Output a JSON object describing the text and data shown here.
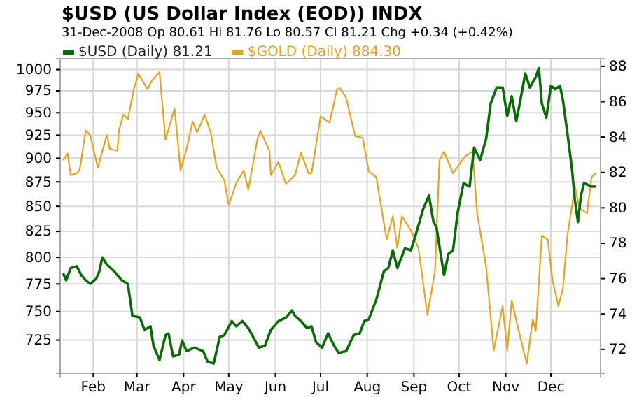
{
  "chart_data": {
    "type": "line",
    "title": "$USD (US Dollar Index (EOD)) INDX",
    "subtitle": "31-Dec-2008  Op 80.61  Hi 81.76  Lo 80.57  Cl 81.21  Chg +0.34 (+0.42%)",
    "log": "y",
    "grid": true,
    "legend": "top",
    "xlim": [
      "2008-01-10",
      "2009-01-03"
    ],
    "xticks": [
      {
        "value": "2008-02-01",
        "label": "Feb"
      },
      {
        "value": "2008-03-01",
        "label": "Mar"
      },
      {
        "value": "2008-04-01",
        "label": "Apr"
      },
      {
        "value": "2008-05-01",
        "label": "May"
      },
      {
        "value": "2008-06-01",
        "label": "Jun"
      },
      {
        "value": "2008-07-01",
        "label": "Jul"
      },
      {
        "value": "2008-08-01",
        "label": "Aug"
      },
      {
        "value": "2008-09-01",
        "label": "Sep"
      },
      {
        "value": "2008-10-01",
        "label": "Oct"
      },
      {
        "value": "2008-11-01",
        "label": "Nov"
      },
      {
        "value": "2008-12-01",
        "label": "Dec"
      }
    ],
    "ylim": [
      697,
      1013
    ],
    "yticks": [
      725,
      750,
      775,
      800,
      825,
      850,
      875,
      900,
      925,
      950,
      975,
      1000
    ],
    "y2lim": [
      70.65,
      88.43
    ],
    "y2ticks": [
      72,
      74,
      76,
      78,
      80,
      82,
      84,
      86,
      88
    ],
    "series": [
      {
        "name": "$USD (Daily) 81.21",
        "color": "#0b6b0b",
        "axis": "y2",
        "x": [
          "2008-01-12",
          "2008-01-14",
          "2008-01-17",
          "2008-01-21",
          "2008-01-24",
          "2008-01-27",
          "2008-01-30",
          "2008-02-03",
          "2008-02-05",
          "2008-02-07",
          "2008-02-10",
          "2008-02-15",
          "2008-02-20",
          "2008-02-24",
          "2008-02-27",
          "2008-03-03",
          "2008-03-06",
          "2008-03-10",
          "2008-03-12",
          "2008-03-16",
          "2008-03-20",
          "2008-03-22",
          "2008-03-25",
          "2008-03-29",
          "2008-03-31",
          "2008-04-03",
          "2008-04-08",
          "2008-04-14",
          "2008-04-17",
          "2008-04-21",
          "2008-04-25",
          "2008-04-28",
          "2008-05-03",
          "2008-05-06",
          "2008-05-10",
          "2008-05-14",
          "2008-05-21",
          "2008-05-25",
          "2008-05-29",
          "2008-06-03",
          "2008-06-08",
          "2008-06-12",
          "2008-06-14",
          "2008-06-18",
          "2008-06-22",
          "2008-06-25",
          "2008-06-28",
          "2008-07-02",
          "2008-07-06",
          "2008-07-10",
          "2008-07-13",
          "2008-07-18",
          "2008-07-23",
          "2008-07-27",
          "2008-07-30",
          "2008-08-02",
          "2008-08-07",
          "2008-08-12",
          "2008-08-15",
          "2008-08-18",
          "2008-08-21",
          "2008-08-26",
          "2008-08-30",
          "2008-09-03",
          "2008-09-07",
          "2008-09-11",
          "2008-09-14",
          "2008-09-16",
          "2008-09-21",
          "2008-09-24",
          "2008-09-27",
          "2008-09-30",
          "2008-10-04",
          "2008-10-08",
          "2008-10-11",
          "2008-10-15",
          "2008-10-19",
          "2008-10-22",
          "2008-10-26",
          "2008-10-30",
          "2008-11-02",
          "2008-11-05",
          "2008-11-08",
          "2008-11-11",
          "2008-11-14",
          "2008-11-17",
          "2008-11-21",
          "2008-11-23",
          "2008-11-25",
          "2008-11-28",
          "2008-12-01",
          "2008-12-04",
          "2008-12-07",
          "2008-12-09",
          "2008-12-12",
          "2008-12-15",
          "2008-12-17",
          "2008-12-19",
          "2008-12-21",
          "2008-12-23",
          "2008-12-28",
          "2008-12-31"
        ],
        "values": [
          76.3,
          75.9,
          76.6,
          76.7,
          76.2,
          75.9,
          75.7,
          76.0,
          76.4,
          77.2,
          76.8,
          76.4,
          75.9,
          75.7,
          73.9,
          73.8,
          73.1,
          73.3,
          72.2,
          71.4,
          72.8,
          72.9,
          71.6,
          71.7,
          72.5,
          71.9,
          72.1,
          71.9,
          71.3,
          71.2,
          72.7,
          72.8,
          73.6,
          73.3,
          73.6,
          73.2,
          72.1,
          72.2,
          73.1,
          73.6,
          73.8,
          74.2,
          73.9,
          73.6,
          73.2,
          73.3,
          72.4,
          72.1,
          72.9,
          72.2,
          71.8,
          71.9,
          72.8,
          72.9,
          73.6,
          73.7,
          74.8,
          76.4,
          76.6,
          77.6,
          76.6,
          77.7,
          77.6,
          78.7,
          79.9,
          80.7,
          79.2,
          78.9,
          76.2,
          77.4,
          77.6,
          79.7,
          81.4,
          81.2,
          83.4,
          82.7,
          83.9,
          85.9,
          86.8,
          86.8,
          85.2,
          86.3,
          84.9,
          86.2,
          87.6,
          86.8,
          87.4,
          87.9,
          85.9,
          85.1,
          86.9,
          86.7,
          86.9,
          86.1,
          84.2,
          82.2,
          80.4,
          79.2,
          80.7,
          81.4,
          81.2,
          81.21
        ]
      },
      {
        "name": "$GOLD (Daily) 884.30",
        "color": "#e3a325",
        "axis": "y",
        "x": [
          "2008-01-12",
          "2008-01-15",
          "2008-01-17",
          "2008-01-21",
          "2008-01-23",
          "2008-01-27",
          "2008-01-30",
          "2008-02-04",
          "2008-02-10",
          "2008-02-12",
          "2008-02-17",
          "2008-02-18",
          "2008-02-21",
          "2008-02-24",
          "2008-02-28",
          "2008-03-02",
          "2008-03-08",
          "2008-03-11",
          "2008-03-16",
          "2008-03-20",
          "2008-03-26",
          "2008-03-30",
          "2008-04-03",
          "2008-04-07",
          "2008-04-10",
          "2008-04-15",
          "2008-04-19",
          "2008-04-23",
          "2008-04-28",
          "2008-05-01",
          "2008-05-06",
          "2008-05-11",
          "2008-05-14",
          "2008-05-20",
          "2008-05-22",
          "2008-05-28",
          "2008-05-29",
          "2008-06-03",
          "2008-06-08",
          "2008-06-14",
          "2008-06-18",
          "2008-06-23",
          "2008-06-25",
          "2008-07-01",
          "2008-07-07",
          "2008-07-12",
          "2008-07-14",
          "2008-07-18",
          "2008-07-24",
          "2008-07-29",
          "2008-08-02",
          "2008-08-07",
          "2008-08-12",
          "2008-08-14",
          "2008-08-18",
          "2008-08-21",
          "2008-08-24",
          "2008-08-30",
          "2008-09-04",
          "2008-09-10",
          "2008-09-15",
          "2008-09-18",
          "2008-09-21",
          "2008-09-27",
          "2008-10-05",
          "2008-10-10",
          "2008-10-13",
          "2008-10-19",
          "2008-10-24",
          "2008-10-30",
          "2008-11-02",
          "2008-11-05",
          "2008-11-10",
          "2008-11-15",
          "2008-11-19",
          "2008-11-21",
          "2008-11-25",
          "2008-11-29",
          "2008-12-02",
          "2008-12-06",
          "2008-12-09",
          "2008-12-12",
          "2008-12-17",
          "2008-12-20",
          "2008-12-25",
          "2008-12-28",
          "2008-12-31"
        ],
        "values": [
          898,
          905,
          882,
          884,
          888,
          930,
          925,
          890,
          925,
          910,
          908,
          930,
          948,
          943,
          977,
          995,
          977,
          987,
          997,
          920,
          955,
          887,
          910,
          940,
          928,
          948,
          928,
          890,
          877,
          851,
          874,
          887,
          867,
          920,
          930,
          908,
          882,
          896,
          873,
          882,
          906,
          884,
          884,
          946,
          939,
          977,
          978,
          967,
          924,
          922,
          886,
          880,
          834,
          817,
          840,
          809,
          840,
          826,
          809,
          747,
          787,
          898,
          907,
          884,
          902,
          907,
          843,
          791,
          716,
          755,
          716,
          760,
          731,
          705,
          743,
          733,
          821,
          817,
          779,
          755,
          771,
          821,
          870,
          848,
          843,
          880,
          884.3
        ]
      }
    ]
  }
}
